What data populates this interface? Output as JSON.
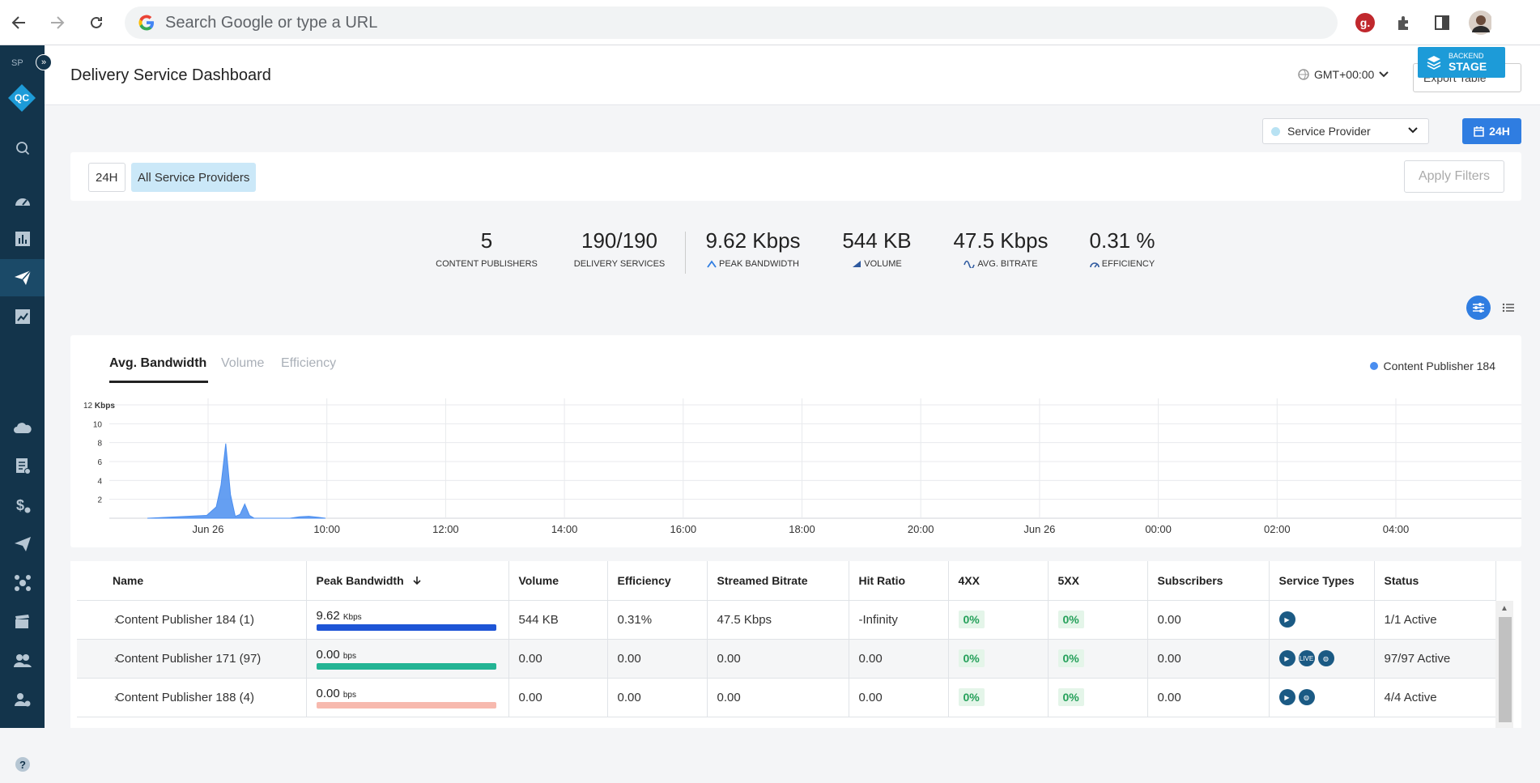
{
  "browser": {
    "omnibox_placeholder": "Search Google or type a URL",
    "icons": [
      "back-icon",
      "forward-icon",
      "reload-icon",
      "google-logo",
      "grammarly-icon",
      "extensions-icon",
      "side-panel-icon",
      "profile-avatar"
    ]
  },
  "sidebar": {
    "workspace": "SP",
    "expand_icon": "double-chevron-right-icon",
    "logo_text": "QC",
    "items": [
      {
        "name": "search",
        "icon": "search-icon"
      },
      {
        "name": "dashboard",
        "icon": "gauge-icon"
      },
      {
        "name": "reports",
        "icon": "bar-chart-icon"
      },
      {
        "name": "delivery",
        "icon": "paper-plane-icon",
        "active": true
      },
      {
        "name": "analytics",
        "icon": "line-chart-icon"
      },
      {
        "name": "cloud",
        "icon": "cloud-gear-icon"
      },
      {
        "name": "documents",
        "icon": "document-gear-icon"
      },
      {
        "name": "billing",
        "icon": "dollar-gear-icon"
      },
      {
        "name": "send-settings",
        "icon": "plane-gear-icon"
      },
      {
        "name": "network",
        "icon": "network-icon"
      },
      {
        "name": "media",
        "icon": "clapper-gear-icon"
      },
      {
        "name": "users",
        "icon": "users-gear-icon"
      },
      {
        "name": "user-settings",
        "icon": "user-gear-icon"
      },
      {
        "name": "help",
        "icon": "help-icon"
      }
    ]
  },
  "header": {
    "title": "Delivery Service Dashboard",
    "timezone": "GMT+00:00",
    "export_label": "Export Table",
    "stage_badge": {
      "line1": "BACKEND",
      "line2": "STAGE"
    }
  },
  "filters": {
    "service_provider_label": "Service Provider",
    "range_label": "24H",
    "chips": [
      "24H",
      "All Service Providers"
    ],
    "apply_label": "Apply Filters"
  },
  "kpis": [
    {
      "value": "5",
      "label": "CONTENT PUBLISHERS",
      "icon": ""
    },
    {
      "value": "190/190",
      "label": "DELIVERY SERVICES",
      "icon": ""
    },
    {
      "value": "9.62 Kbps",
      "label": "PEAK BANDWIDTH",
      "icon": "peak-icon"
    },
    {
      "value": "544 KB",
      "label": "VOLUME",
      "icon": "volume-icon"
    },
    {
      "value": "47.5 Kbps",
      "label": "AVG. BITRATE",
      "icon": "wave-icon"
    },
    {
      "value": "0.31 %",
      "label": "EFFICIENCY",
      "icon": "gauge-small-icon"
    }
  ],
  "chart_tabs": [
    "Avg. Bandwidth",
    "Volume",
    "Efficiency"
  ],
  "chart_data": {
    "type": "area",
    "yunit": "Kbps",
    "y_ticks": [
      "12",
      "10",
      "8",
      "6",
      "4",
      "2"
    ],
    "ylim": [
      0,
      12
    ],
    "x_ticks": [
      "Jun 26",
      "10:00",
      "12:00",
      "14:00",
      "16:00",
      "18:00",
      "20:00",
      "Jun 26",
      "00:00",
      "02:00",
      "04:00"
    ],
    "series": [
      {
        "name": "Content Publisher 184",
        "color": "#4a8ef0",
        "points": [
          [
            0.0,
            0
          ],
          [
            0.5,
            0.3
          ],
          [
            0.58,
            1.2
          ],
          [
            0.62,
            3.5
          ],
          [
            0.66,
            7.9
          ],
          [
            0.7,
            2.5
          ],
          [
            0.74,
            0.2
          ],
          [
            0.78,
            0.4
          ],
          [
            0.82,
            1.5
          ],
          [
            0.86,
            0.3
          ],
          [
            0.9,
            0
          ],
          [
            1.2,
            0
          ],
          [
            1.28,
            0.15
          ],
          [
            1.36,
            0.2
          ],
          [
            1.44,
            0.1
          ],
          [
            1.5,
            0
          ]
        ]
      }
    ]
  },
  "table": {
    "columns": [
      "Name",
      "Peak Bandwidth",
      "Volume",
      "Efficiency",
      "Streamed Bitrate",
      "Hit Ratio",
      "4XX",
      "5XX",
      "Subscribers",
      "Service Types",
      "Status"
    ],
    "sort_icon": "arrow-down-icon",
    "rows": [
      {
        "name": "Content Publisher 184 (1)",
        "peak": "9.62",
        "peak_unit": "Kbps",
        "bar_color": "#1e55d6",
        "bar_fill": 1.0,
        "volume": "544 KB",
        "efficiency": "0.31%",
        "bitrate": "47.5 Kbps",
        "hit": "-Infinity",
        "x4": "0%",
        "x5": "0%",
        "subs": "0.00",
        "services": [
          "play-icon"
        ],
        "status": "1/1 Active"
      },
      {
        "name": "Content Publisher 171 (97)",
        "peak": "0.00",
        "peak_unit": "bps",
        "bar_color": "#23b494",
        "bar_fill": 1.0,
        "volume": "0.00",
        "efficiency": "0.00",
        "bitrate": "0.00",
        "hit": "0.00",
        "x4": "0%",
        "x5": "0%",
        "subs": "0.00",
        "services": [
          "play-icon",
          "live-icon",
          "globe-icon"
        ],
        "status": "97/97 Active"
      },
      {
        "name": "Content Publisher 188 (4)",
        "peak": "0.00",
        "peak_unit": "bps",
        "bar_color": "#f7b9ae",
        "bar_fill": 1.0,
        "volume": "0.00",
        "efficiency": "0.00",
        "bitrate": "0.00",
        "hit": "0.00",
        "x4": "0%",
        "x5": "0%",
        "subs": "0.00",
        "services": [
          "play-icon",
          "globe-icon"
        ],
        "status": "4/4 Active"
      }
    ]
  }
}
